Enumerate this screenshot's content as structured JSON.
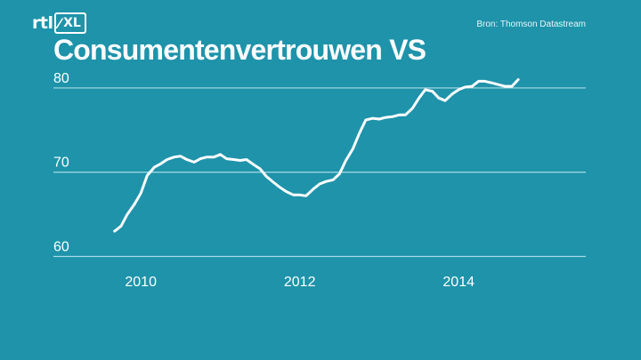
{
  "header": {
    "logo_text": "rtl",
    "logo_box_text": "XL",
    "source": "Bron: Thomson Datastream"
  },
  "chart_data": {
    "type": "line",
    "title": "Consumentenvertrouwen VS",
    "xlabel": "",
    "ylabel": "",
    "xlim": [
      2008.9,
      2015.6
    ],
    "ylim": [
      59,
      82
    ],
    "grid": true,
    "y_ticks": [
      60,
      70,
      80
    ],
    "x_ticks": [
      2010,
      2012,
      2014
    ],
    "colors": {
      "background": "#1e93aa",
      "line": "#ffffff",
      "grid": "#a9dbe5"
    },
    "series": [
      {
        "x": [
          2009.67,
          2009.75,
          2009.83,
          2009.92,
          2010.0,
          2010.08,
          2010.17,
          2010.25,
          2010.33,
          2010.42,
          2010.5,
          2010.58,
          2010.67,
          2010.75,
          2010.83,
          2010.92,
          2011.0,
          2011.08,
          2011.17,
          2011.25,
          2011.33,
          2011.42,
          2011.5,
          2011.58,
          2011.67,
          2011.75,
          2011.83,
          2011.92,
          2012.0,
          2012.08,
          2012.17,
          2012.25,
          2012.33,
          2012.42,
          2012.5,
          2012.58,
          2012.67,
          2012.75,
          2012.83,
          2012.92,
          2013.0,
          2013.08,
          2013.17,
          2013.25,
          2013.33,
          2013.42,
          2013.5,
          2013.58,
          2013.67,
          2013.75,
          2013.83,
          2013.92,
          2014.0,
          2014.08,
          2014.17,
          2014.25,
          2014.33,
          2014.42,
          2014.5,
          2014.58,
          2014.67,
          2014.75
        ],
        "values": [
          63.0,
          63.6,
          65.0,
          66.2,
          67.5,
          69.6,
          70.6,
          71.0,
          71.5,
          71.8,
          71.9,
          71.5,
          71.2,
          71.6,
          71.8,
          71.8,
          72.1,
          71.6,
          71.5,
          71.4,
          71.5,
          70.9,
          70.4,
          69.5,
          68.8,
          68.2,
          67.7,
          67.3,
          67.3,
          67.2,
          68.0,
          68.6,
          68.9,
          69.1,
          69.8,
          71.4,
          72.8,
          74.6,
          76.2,
          76.4,
          76.3,
          76.5,
          76.6,
          76.8,
          76.8,
          77.6,
          78.8,
          79.8,
          79.6,
          78.8,
          78.5,
          79.3,
          79.8,
          80.1,
          80.2,
          80.8,
          80.8,
          80.6,
          80.4,
          80.2,
          80.2,
          81.0
        ]
      }
    ]
  }
}
